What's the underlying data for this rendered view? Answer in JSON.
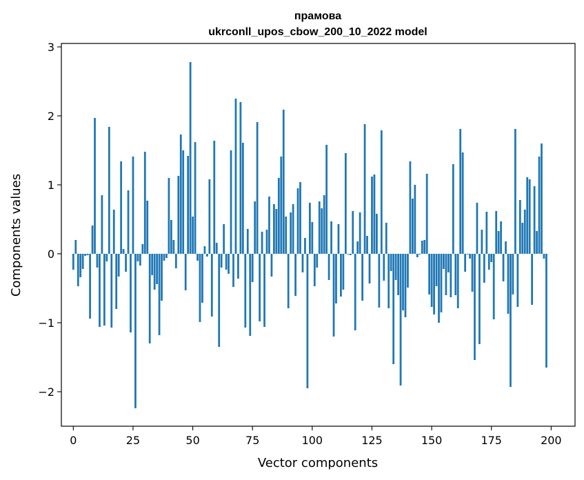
{
  "chart_data": {
    "type": "bar",
    "title": "прамова",
    "subtitle": "ukrconll_upos_cbow_200_10_2022 model",
    "xlabel": "Vector components",
    "ylabel": "Components values",
    "xlim": [
      -5,
      210
    ],
    "ylim": [
      -2.5,
      3.05
    ],
    "xticks": [
      0,
      25,
      50,
      75,
      100,
      125,
      150,
      175,
      200
    ],
    "yticks": [
      -2,
      -1,
      0,
      1,
      2,
      3
    ],
    "xtick_labels": [
      "0",
      "25",
      "50",
      "75",
      "100",
      "125",
      "150",
      "175",
      "200"
    ],
    "ytick_labels": [
      "−2",
      "−1",
      "0",
      "1",
      "2",
      "3"
    ],
    "grid": false,
    "bar_color": "#1f77b4",
    "values": [
      -0.23,
      0.2,
      -0.47,
      -0.34,
      -0.22,
      -0.03,
      -0.02,
      -0.94,
      0.41,
      1.97,
      -0.2,
      -1.06,
      0.85,
      -1.04,
      -0.11,
      1.84,
      -1.07,
      0.64,
      -0.8,
      -0.33,
      1.34,
      0.07,
      -0.26,
      0.92,
      -1.14,
      1.41,
      -2.24,
      -0.11,
      -0.17,
      0.14,
      1.48,
      0.77,
      -1.3,
      -0.31,
      -0.52,
      -0.44,
      -1.18,
      -0.68,
      -0.1,
      -0.06,
      1.1,
      0.49,
      0.2,
      -0.21,
      1.13,
      1.73,
      1.5,
      -0.53,
      1.42,
      2.78,
      0.54,
      1.62,
      -0.1,
      -0.99,
      -0.71,
      0.11,
      -0.04,
      1.08,
      -0.91,
      1.64,
      0.16,
      -1.35,
      -0.2,
      0.43,
      -0.23,
      -0.29,
      1.5,
      -0.48,
      2.25,
      -0.36,
      2.2,
      1.61,
      -1.07,
      0.36,
      -1.19,
      -0.41,
      0.76,
      1.91,
      -0.98,
      0.32,
      -1.06,
      0.35,
      0.83,
      -0.33,
      0.72,
      0.65,
      1.1,
      1.41,
      2.09,
      0.54,
      -0.79,
      0.6,
      0.72,
      -0.61,
      0.95,
      1.04,
      -0.27,
      0.23,
      -1.95,
      0.74,
      0.46,
      -0.47,
      -0.2,
      0.76,
      0.66,
      0.85,
      1.58,
      -0.38,
      0.47,
      -1.2,
      -0.72,
      0.43,
      -0.62,
      -0.52,
      1.46,
      -0.01,
      -0.02,
      0.62,
      -1.11,
      0.18,
      0.6,
      -0.68,
      1.88,
      0.26,
      -0.43,
      1.12,
      1.15,
      0.58,
      -0.78,
      1.79,
      -0.39,
      0.45,
      -0.79,
      -0.25,
      -1.6,
      -0.38,
      -0.6,
      -1.91,
      -0.82,
      -0.92,
      -0.49,
      1.34,
      0.8,
      1.0,
      -0.05,
      -0.01,
      0.19,
      0.2,
      1.16,
      -0.59,
      -0.77,
      -0.88,
      -0.47,
      -1.0,
      -0.85,
      -0.22,
      -0.6,
      -0.27,
      -0.63,
      1.3,
      -0.6,
      -0.79,
      1.81,
      1.47,
      -0.26,
      -0.01,
      -0.07,
      -0.55,
      -1.54,
      0.74,
      -1.31,
      0.35,
      -0.42,
      0.61,
      -0.23,
      -0.12,
      -0.95,
      0.62,
      0.33,
      0.47,
      -0.4,
      0.18,
      -0.87,
      -1.93,
      -0.59,
      1.81,
      -0.77,
      0.78,
      0.45,
      0.64,
      1.11,
      1.08,
      -0.74,
      0.98,
      0.33,
      1.41,
      1.6,
      -0.07,
      -1.65
    ]
  }
}
